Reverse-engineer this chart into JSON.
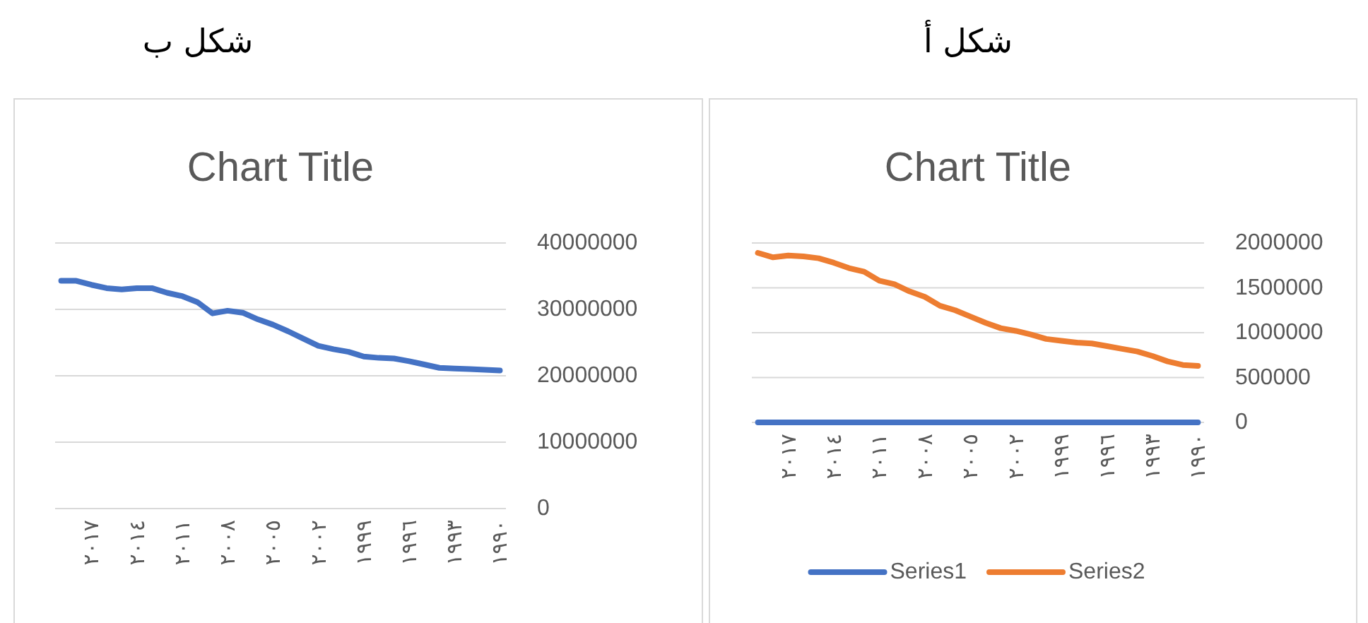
{
  "chart_data": [
    {
      "type": "line",
      "title": "Chart Title",
      "annotations": [
        "شكل ب"
      ],
      "categories": [
        null,
        null,
        "٢٠١٧",
        null,
        null,
        "٢٠١٤",
        null,
        null,
        "٢٠١١",
        null,
        null,
        "٢٠٠٨",
        null,
        null,
        "٢٠٠٥",
        null,
        null,
        "٢٠٠٢",
        null,
        null,
        "١٩٩٩",
        null,
        null,
        "١٩٩٦",
        null,
        null,
        "١٩٩٣",
        null,
        null,
        "١٩٩٠"
      ],
      "series": [
        {
          "color": "#4472c4",
          "values": [
            34300000,
            34300000,
            33700000,
            33200000,
            33000000,
            33200000,
            33200000,
            32500000,
            32000000,
            31100000,
            29400000,
            29800000,
            29500000,
            28500000,
            27700000,
            26700000,
            25600000,
            24500000,
            24000000,
            23600000,
            22900000,
            22700000,
            22600000,
            22200000,
            21700000,
            21200000,
            21100000,
            21000000,
            20900000,
            20800000
          ]
        }
      ],
      "ylim": [
        0,
        40000000
      ],
      "yticks": [
        0,
        10000000,
        20000000,
        30000000,
        40000000
      ],
      "grid": "y",
      "marker": "none",
      "line_style": "solid",
      "legend": false
    },
    {
      "type": "line",
      "title": "Chart Title",
      "annotations": [
        "شكل أ"
      ],
      "categories": [
        null,
        null,
        "٢٠١٧",
        null,
        null,
        "٢٠١٤",
        null,
        null,
        "٢٠١١",
        null,
        null,
        "٢٠٠٨",
        null,
        null,
        "٢٠٠٥",
        null,
        null,
        "٢٠٠٢",
        null,
        null,
        "١٩٩٩",
        null,
        null,
        "١٩٩٦",
        null,
        null,
        "١٩٩٣",
        null,
        null,
        "١٩٩٠"
      ],
      "series": [
        {
          "name": "Series1",
          "color": "#4472c4",
          "values": [
            0,
            0,
            0,
            0,
            0,
            0,
            0,
            0,
            0,
            0,
            0,
            0,
            0,
            0,
            0,
            0,
            0,
            0,
            0,
            0,
            0,
            0,
            0,
            0,
            0,
            0,
            0,
            0,
            0,
            0
          ]
        },
        {
          "name": "Series2",
          "color": "#ed7d31",
          "values": [
            1890000,
            1840000,
            1860000,
            1850000,
            1830000,
            1780000,
            1720000,
            1680000,
            1580000,
            1540000,
            1460000,
            1400000,
            1300000,
            1250000,
            1180000,
            1110000,
            1050000,
            1020000,
            980000,
            930000,
            910000,
            890000,
            880000,
            850000,
            820000,
            790000,
            740000,
            680000,
            640000,
            630000
          ]
        }
      ],
      "ylim": [
        0,
        2000000
      ],
      "yticks": [
        0,
        500000,
        1000000,
        1500000,
        2000000
      ],
      "grid": "y",
      "marker": "none",
      "line_style": "solid",
      "legend": "bottom"
    }
  ]
}
